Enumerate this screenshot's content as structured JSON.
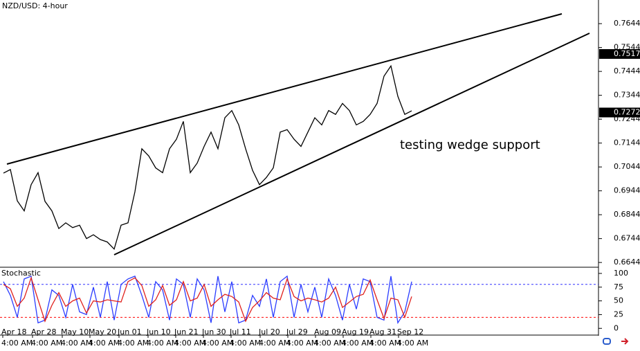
{
  "chart_data": [
    {
      "type": "line",
      "title": "NZD/USD: 4-hour",
      "annotation": "testing wedge support",
      "ylim": [
        0.6627,
        0.7743
      ],
      "yticks": [
        0.6644,
        0.6744,
        0.6844,
        0.6944,
        0.7044,
        0.7144,
        0.7244,
        0.7344,
        0.7444,
        0.7544,
        0.7644
      ],
      "price_markers": [
        0.7517,
        0.7272
      ],
      "xlim": [
        -0.5,
        86
      ],
      "series": [
        {
          "color": "#000000",
          "values": [
            0.7018,
            0.7033,
            0.6902,
            0.686,
            0.697,
            0.702,
            0.69,
            0.686,
            0.6786,
            0.681,
            0.679,
            0.68,
            0.6744,
            0.676,
            0.674,
            0.673,
            0.67,
            0.68,
            0.681,
            0.694,
            0.712,
            0.709,
            0.704,
            0.702,
            0.712,
            0.716,
            0.7235,
            0.702,
            0.706,
            0.713,
            0.719,
            0.712,
            0.725,
            0.728,
            0.722,
            0.712,
            0.703,
            0.697,
            0.7,
            0.704,
            0.719,
            0.72,
            0.716,
            0.713,
            0.719,
            0.725,
            0.722,
            0.728,
            0.7264,
            0.731,
            0.728,
            0.722,
            0.7235,
            0.7264,
            0.731,
            0.7424,
            0.7467,
            0.734,
            0.7264,
            0.7279
          ]
        }
      ]
    },
    {
      "type": "line",
      "title": "Stochastic",
      "ylim": [
        -11,
        110
      ],
      "yticks": [
        0,
        25,
        50,
        75,
        100
      ],
      "levels": [
        {
          "value": 80,
          "color": "#3030ff"
        },
        {
          "value": 20,
          "color": "#ff0000"
        }
      ],
      "xlim": [
        -0.5,
        86
      ],
      "xticks": [
        {
          "value": -0.3,
          "label": "Apr 18"
        },
        {
          "value": 4,
          "label": "Apr 28"
        },
        {
          "value": 8.3,
          "label": "May 10"
        },
        {
          "value": 12.3,
          "label": "May 20"
        },
        {
          "value": 16.5,
          "label": "Jun 01"
        },
        {
          "value": 20.7,
          "label": "Jun 10"
        },
        {
          "value": 24.7,
          "label": "Jun 21"
        },
        {
          "value": 28.7,
          "label": "Jun 30"
        },
        {
          "value": 32.7,
          "label": "Jul 11"
        },
        {
          "value": 36.9,
          "label": "Jul 20"
        },
        {
          "value": 40.9,
          "label": "Jul 29"
        },
        {
          "value": 44.9,
          "label": "Aug 09"
        },
        {
          "value": 48.9,
          "label": "Aug 19"
        },
        {
          "value": 52.9,
          "label": "Aug 31"
        },
        {
          "value": 56.9,
          "label": "Sep 12"
        }
      ],
      "xtick_time": "4:00 AM",
      "series": [
        {
          "color": "#2a3cff",
          "values": [
            85,
            60,
            20,
            90,
            95,
            10,
            15,
            70,
            60,
            20,
            80,
            30,
            25,
            75,
            20,
            85,
            15,
            80,
            90,
            95,
            60,
            20,
            85,
            70,
            15,
            90,
            80,
            20,
            90,
            70,
            10,
            95,
            30,
            85,
            10,
            15,
            60,
            40,
            90,
            20,
            85,
            95,
            20,
            80,
            30,
            75,
            20,
            90,
            60,
            15,
            80,
            35,
            90,
            85,
            20,
            15,
            95,
            10,
            30,
            85
          ]
        },
        {
          "color": "#e0201c",
          "values": [
            80,
            72,
            40,
            55,
            92,
            52,
            13,
            42,
            65,
            40,
            50,
            55,
            28,
            50,
            48,
            52,
            50,
            48,
            85,
            92,
            78,
            40,
            52,
            78,
            42,
            52,
            85,
            50,
            55,
            80,
            40,
            52,
            62,
            58,
            48,
            13,
            38,
            50,
            65,
            55,
            52,
            90,
            58,
            50,
            55,
            52,
            48,
            55,
            75,
            38,
            48,
            58,
            62,
            88,
            52,
            18,
            55,
            52,
            20,
            58
          ]
        }
      ]
    }
  ]
}
